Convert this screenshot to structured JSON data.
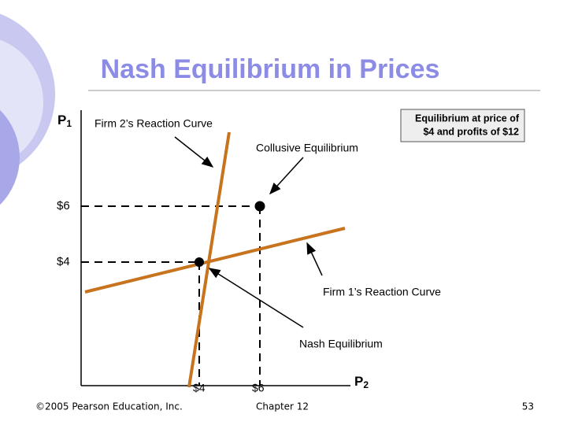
{
  "title": "Nash Equilibrium in Prices",
  "axes": {
    "vertical": {
      "letter": "P",
      "subscript": "1"
    },
    "horizontal": {
      "letter": "P",
      "subscript": "2"
    }
  },
  "vertical_labels": [
    "$6",
    "$4"
  ],
  "horizontal_labels": [
    "$4",
    "$6"
  ],
  "annotations": {
    "firm2": "Firm 2’s Reaction Curve",
    "collusive": "Collusive Equilibrium",
    "firm1": "Firm 1’s Reaction Curve",
    "nash": "Nash Equilibrium",
    "box": [
      "Equilibrium at price of",
      "$4 and profits of $12"
    ]
  },
  "footer": {
    "left": "©2005 Pearson Education, Inc.",
    "center": "Chapter 12",
    "right": "53"
  }
}
